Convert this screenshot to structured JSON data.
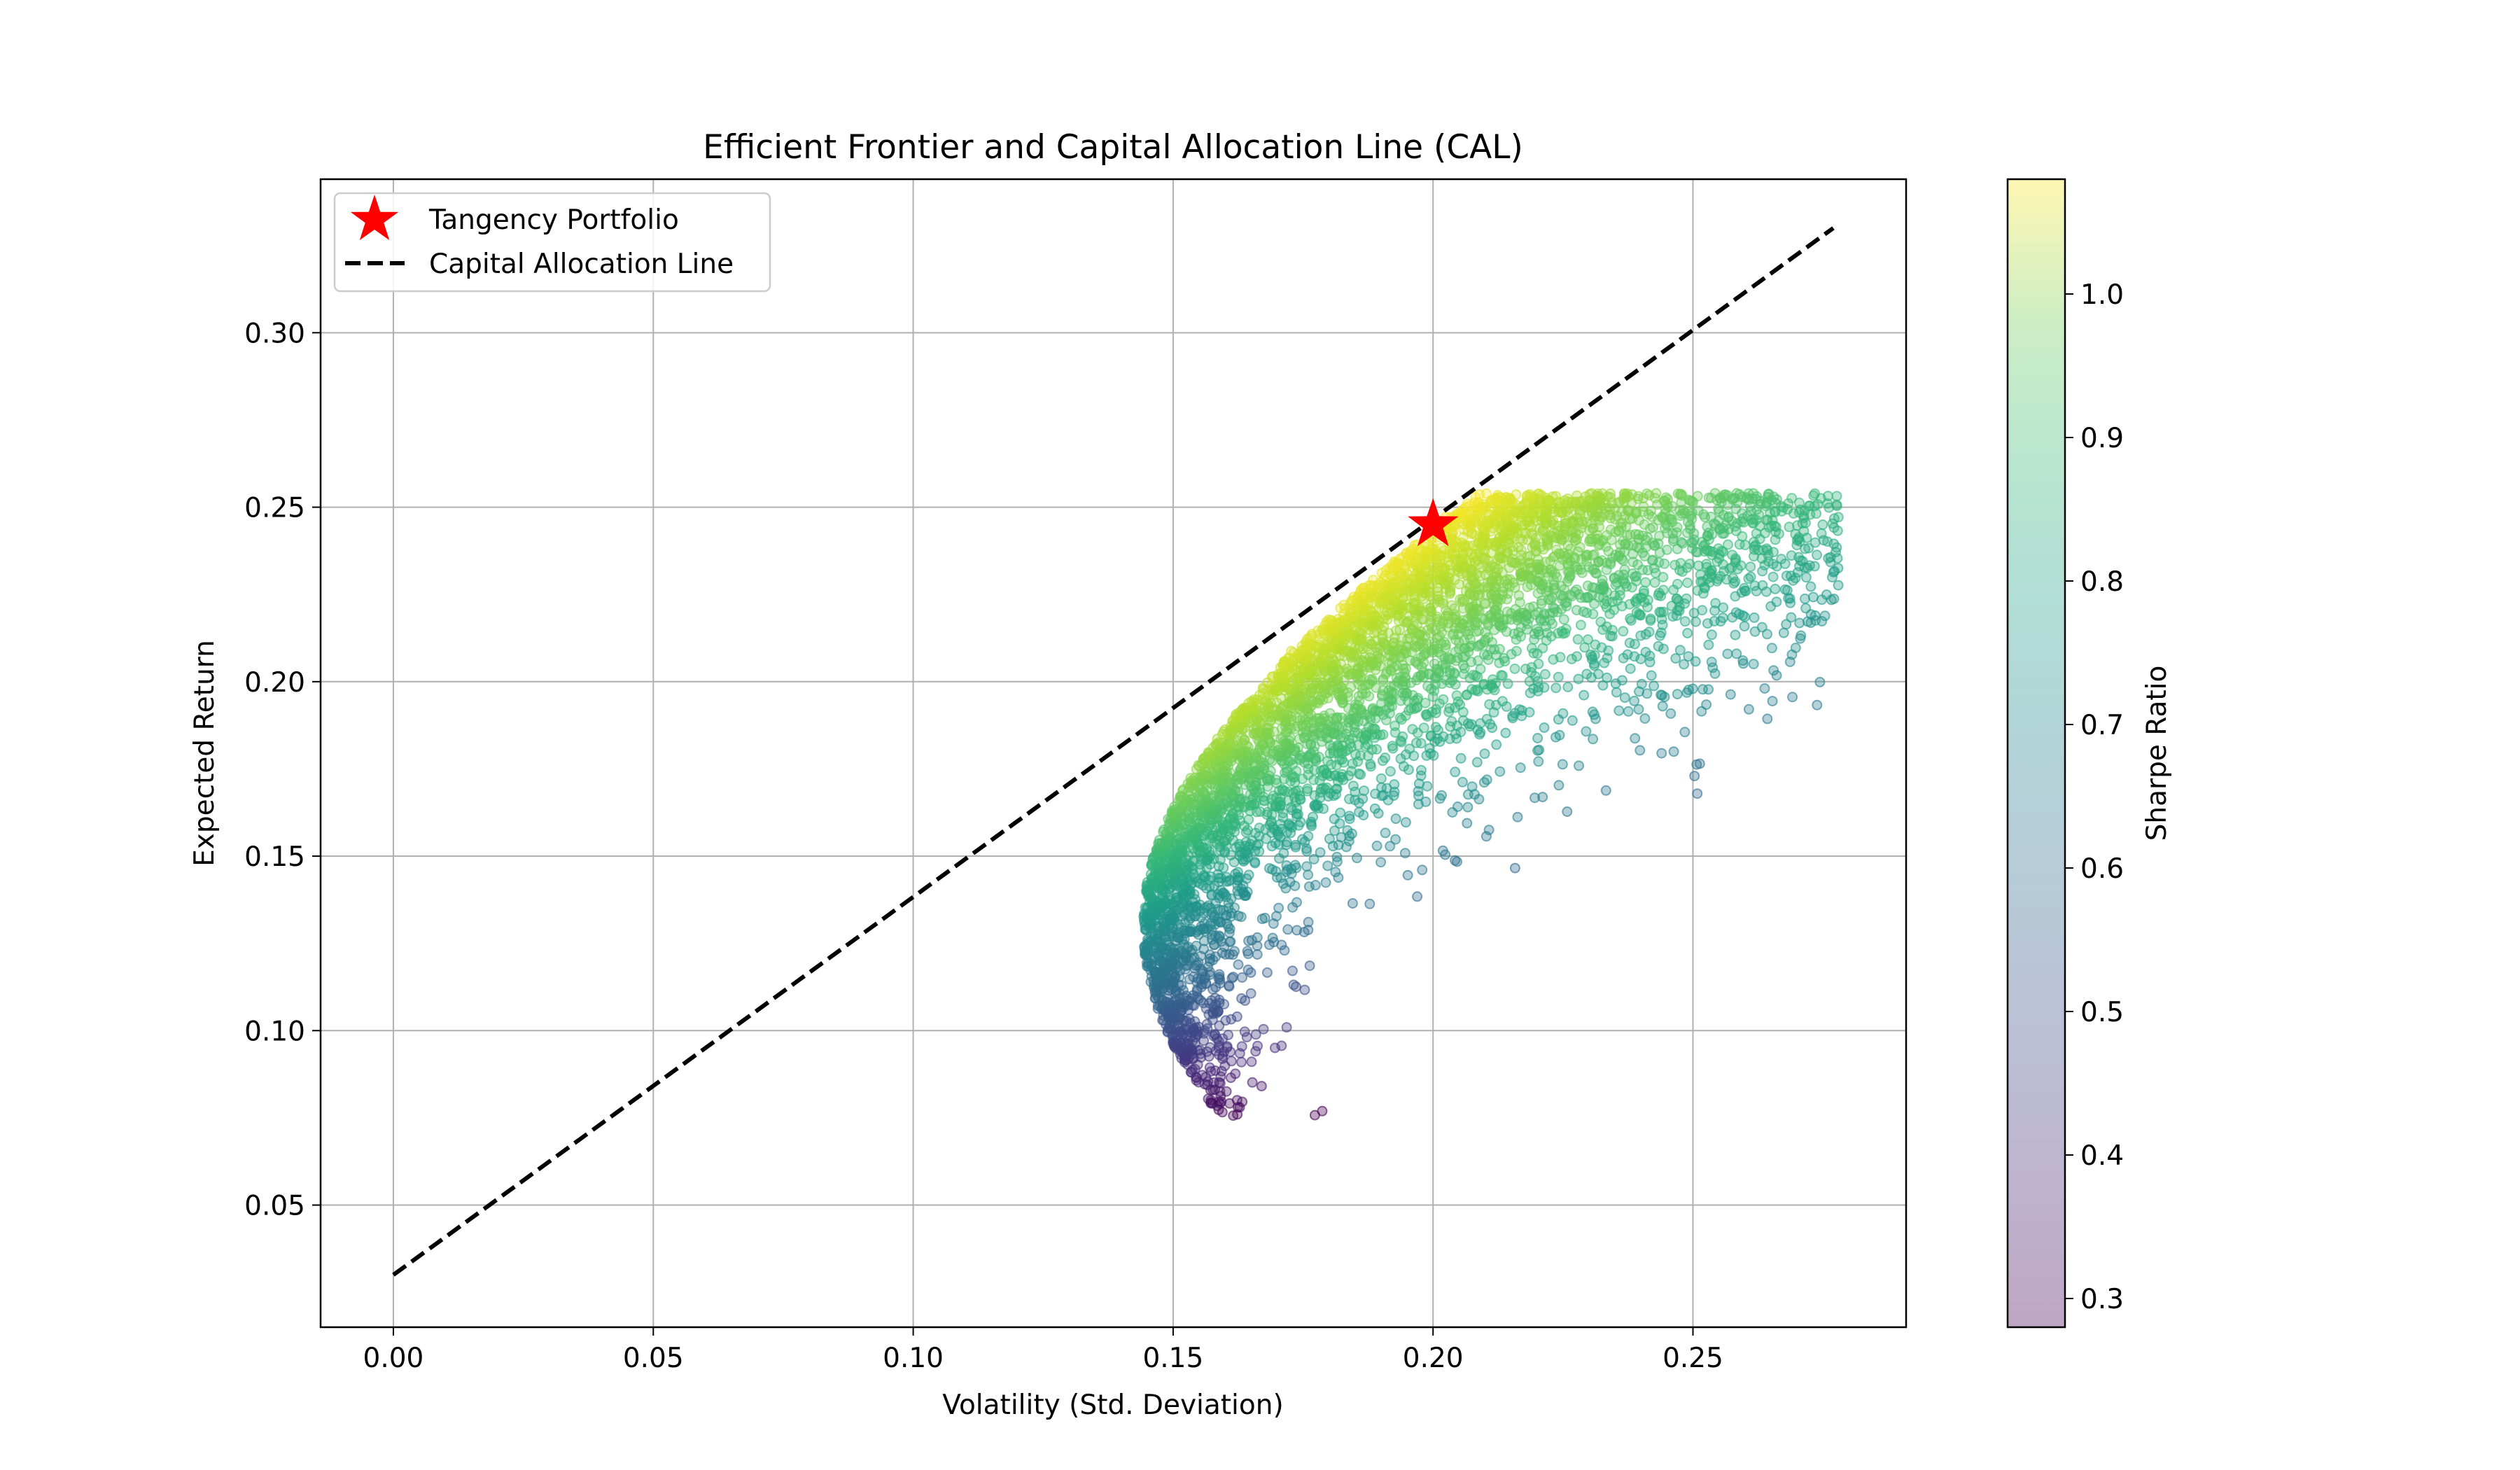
{
  "chart_data": {
    "type": "scatter",
    "title": "Efficient Frontier and Capital Allocation Line (CAL)",
    "xlabel": "Volatility (Std. Deviation)",
    "ylabel": "Expected Return",
    "xlim": [
      -0.014,
      0.291
    ],
    "ylim": [
      0.015,
      0.344
    ],
    "xticks": [
      0.0,
      0.05,
      0.1,
      0.15,
      0.2,
      0.25
    ],
    "xtick_labels": [
      "0.00",
      "0.05",
      "0.10",
      "0.15",
      "0.20",
      "0.25"
    ],
    "yticks": [
      0.05,
      0.1,
      0.15,
      0.2,
      0.25,
      0.3
    ],
    "ytick_labels": [
      "0.05",
      "0.10",
      "0.15",
      "0.20",
      "0.25",
      "0.30"
    ],
    "grid": true,
    "legend_position": "upper-left",
    "risk_free_rate": 0.03,
    "tangency_portfolio": {
      "label": "Tangency Portfolio",
      "volatility": 0.2,
      "return": 0.245,
      "marker": "star",
      "color": "#ff0000"
    },
    "capital_allocation_line": {
      "label": "Capital Allocation Line",
      "x": [
        0.0,
        0.277
      ],
      "y": [
        0.03,
        0.33
      ],
      "color": "#000000",
      "style": "dashed"
    },
    "simulated_portfolios": {
      "count_estimate": 5000,
      "frontier": {
        "min_variance_volatility": 0.143,
        "min_variance_return": 0.13,
        "tangency_volatility": 0.2,
        "tangency_return": 0.245,
        "return_range": [
          0.073,
          0.254
        ]
      },
      "volatility_range": [
        0.143,
        0.278
      ],
      "opacity": 0.35
    },
    "colorbar": {
      "label": "Sharpe Ratio",
      "colormap": "viridis",
      "min": 0.28,
      "max": 1.08,
      "ticks": [
        0.3,
        0.4,
        0.5,
        0.6,
        0.7,
        0.8,
        0.9,
        1.0
      ],
      "tick_labels": [
        "0.3",
        "0.4",
        "0.5",
        "0.6",
        "0.7",
        "0.8",
        "0.9",
        "1.0"
      ]
    },
    "legend": [
      {
        "label": "Tangency Portfolio",
        "marker": "star",
        "color": "#ff0000"
      },
      {
        "label": "Capital Allocation Line",
        "marker": "dashed-line",
        "color": "#000000"
      }
    ]
  }
}
